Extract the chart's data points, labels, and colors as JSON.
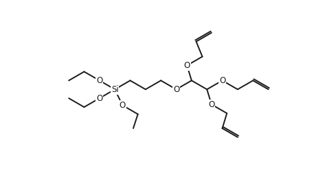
{
  "background_color": "#ffffff",
  "line_color": "#1a1a1a",
  "line_width": 1.4,
  "figure_width": 4.57,
  "figure_height": 2.68,
  "dpi": 100,
  "xlim": [
    0,
    10
  ],
  "ylim": [
    0,
    6
  ],
  "si_label": "Si",
  "o_label": "O",
  "font_size": 8.5
}
